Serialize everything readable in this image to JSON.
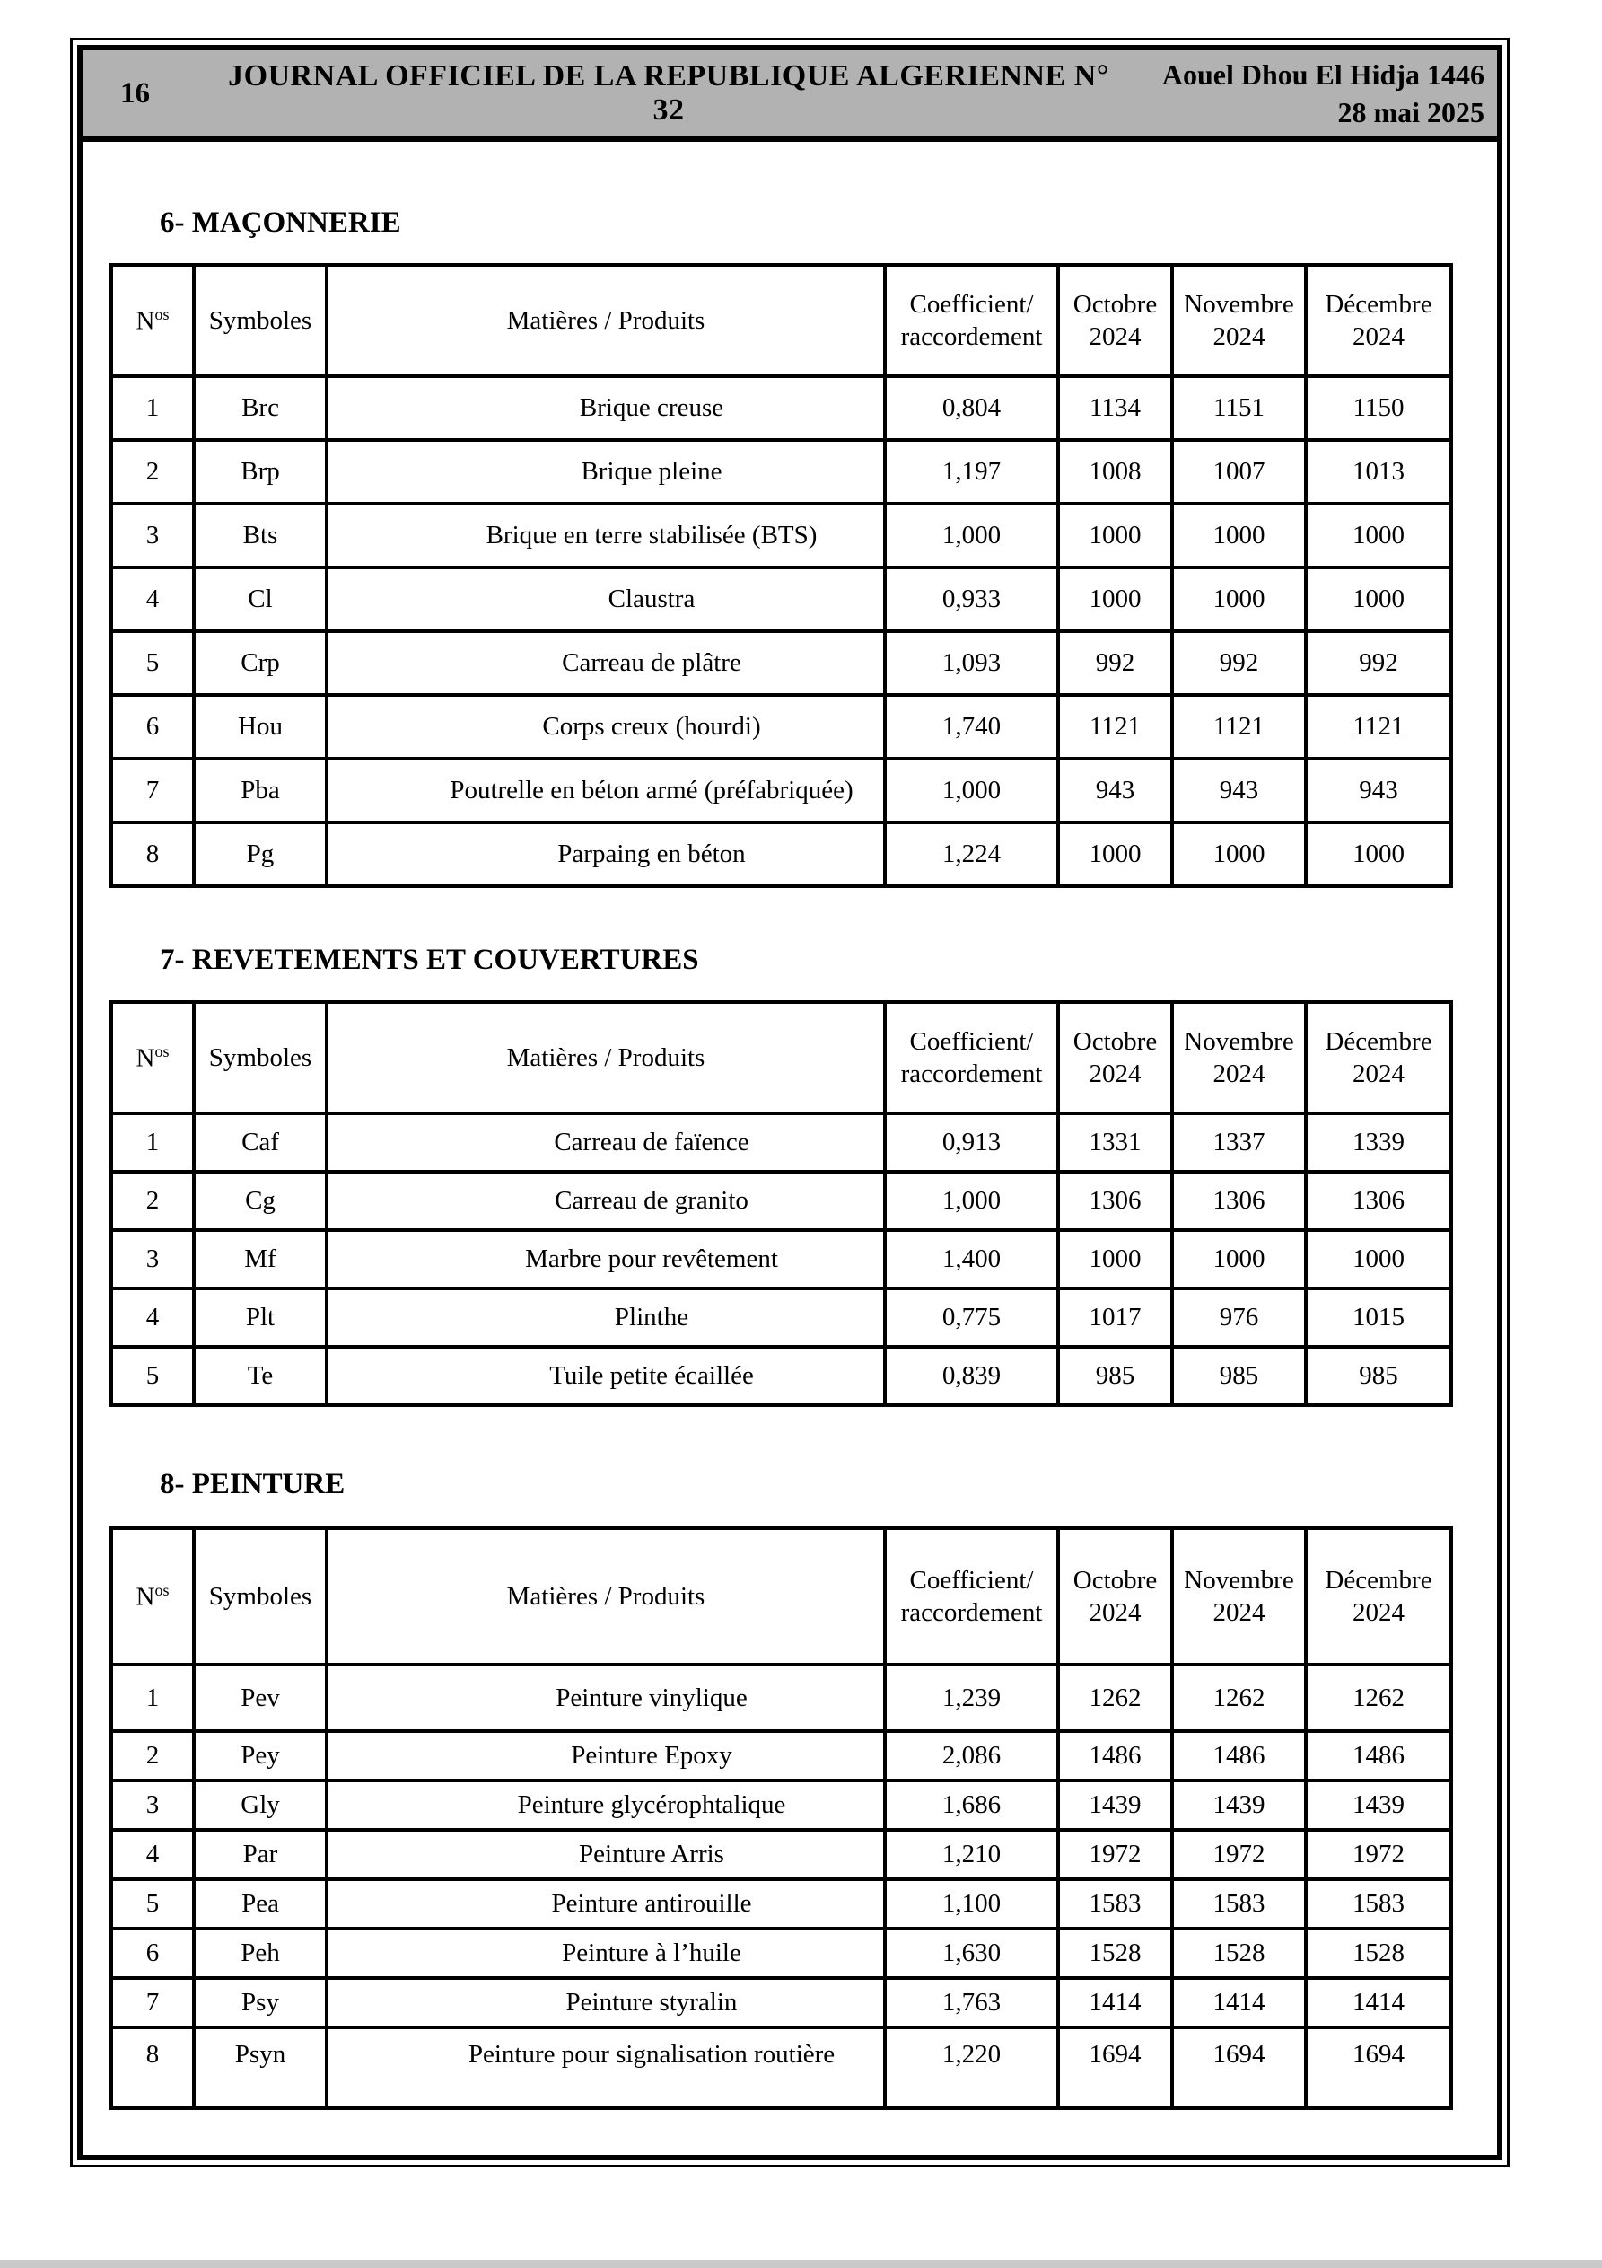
{
  "header": {
    "page_number": "16",
    "journal_title": "JOURNAL OFFICIEL DE LA REPUBLIQUE ALGERIENNE N° 32",
    "date_hijri": "Aouel Dhou El Hidja 1446",
    "date_gregorian": "28 mai 2025"
  },
  "colors": {
    "header_bg": "#b2b2b2",
    "border": "#000000",
    "page_bg": "#ffffff"
  },
  "columns": {
    "no_base": "N",
    "no_sup": "os",
    "symbols": "Symboles",
    "materials": "Matières / Produits",
    "coefficient": "Coefficient/\nraccordement",
    "october": "Octobre\n2024",
    "november": "Novembre\n2024",
    "december": "Décembre\n2024"
  },
  "sections": [
    {
      "title": "6- MAÇONNERIE",
      "rows": [
        {
          "no": "1",
          "symbol": "Brc",
          "material": "Brique creuse",
          "coefficient": "0,804",
          "october": "1134",
          "november": "1151",
          "december": "1150"
        },
        {
          "no": "2",
          "symbol": "Brp",
          "material": "Brique pleine",
          "coefficient": "1,197",
          "october": "1008",
          "november": "1007",
          "december": "1013"
        },
        {
          "no": "3",
          "symbol": "Bts",
          "material": "Brique en terre stabilisée (BTS)",
          "coefficient": "1,000",
          "october": "1000",
          "november": "1000",
          "december": "1000"
        },
        {
          "no": "4",
          "symbol": "Cl",
          "material": "Claustra",
          "coefficient": "0,933",
          "october": "1000",
          "november": "1000",
          "december": "1000"
        },
        {
          "no": "5",
          "symbol": "Crp",
          "material": "Carreau de plâtre",
          "coefficient": "1,093",
          "october": "992",
          "november": "992",
          "december": "992"
        },
        {
          "no": "6",
          "symbol": "Hou",
          "material": "Corps creux (hourdi)",
          "coefficient": "1,740",
          "october": "1121",
          "november": "1121",
          "december": "1121"
        },
        {
          "no": "7",
          "symbol": "Pba",
          "material": "Poutrelle en béton armé (préfabriquée)",
          "coefficient": "1,000",
          "october": "943",
          "november": "943",
          "december": "943"
        },
        {
          "no": "8",
          "symbol": "Pg",
          "material": "Parpaing en béton",
          "coefficient": "1,224",
          "october": "1000",
          "november": "1000",
          "december": "1000"
        }
      ]
    },
    {
      "title": "7- REVETEMENTS ET COUVERTURES",
      "rows": [
        {
          "no": "1",
          "symbol": "Caf",
          "material": "Carreau de faïence",
          "coefficient": "0,913",
          "october": "1331",
          "november": "1337",
          "december": "1339"
        },
        {
          "no": "2",
          "symbol": "Cg",
          "material": "Carreau de granito",
          "coefficient": "1,000",
          "october": "1306",
          "november": "1306",
          "december": "1306"
        },
        {
          "no": "3",
          "symbol": "Mf",
          "material": "Marbre pour revêtement",
          "coefficient": "1,400",
          "october": "1000",
          "november": "1000",
          "december": "1000"
        },
        {
          "no": "4",
          "symbol": "Plt",
          "material": "Plinthe",
          "coefficient": "0,775",
          "october": "1017",
          "november": "976",
          "december": "1015"
        },
        {
          "no": "5",
          "symbol": "Te",
          "material": "Tuile petite écaillée",
          "coefficient": "0,839",
          "october": "985",
          "november": "985",
          "december": "985"
        }
      ]
    },
    {
      "title": "8- PEINTURE",
      "rows": [
        {
          "no": "1",
          "symbol": "Pev",
          "material": "Peinture vinylique",
          "coefficient": "1,239",
          "october": "1262",
          "november": "1262",
          "december": "1262"
        },
        {
          "no": "2",
          "symbol": "Pey",
          "material": "Peinture Epoxy",
          "coefficient": "2,086",
          "october": "1486",
          "november": "1486",
          "december": "1486"
        },
        {
          "no": "3",
          "symbol": "Gly",
          "material": "Peinture glycérophtalique",
          "coefficient": "1,686",
          "october": "1439",
          "november": "1439",
          "december": "1439"
        },
        {
          "no": "4",
          "symbol": "Par",
          "material": "Peinture Arris",
          "coefficient": "1,210",
          "october": "1972",
          "november": "1972",
          "december": "1972"
        },
        {
          "no": "5",
          "symbol": "Pea",
          "material": "Peinture antirouille",
          "coefficient": "1,100",
          "october": "1583",
          "november": "1583",
          "december": "1583"
        },
        {
          "no": "6",
          "symbol": "Peh",
          "material": "Peinture à l’huile",
          "coefficient": "1,630",
          "october": "1528",
          "november": "1528",
          "december": "1528"
        },
        {
          "no": "7",
          "symbol": "Psy",
          "material": "Peinture styralin",
          "coefficient": "1,763",
          "october": "1414",
          "november": "1414",
          "december": "1414"
        },
        {
          "no": "8",
          "symbol": "Psyn",
          "material": "Peinture pour signalisation routière",
          "coefficient": "1,220",
          "october": "1694",
          "november": "1694",
          "december": "1694"
        }
      ]
    }
  ]
}
